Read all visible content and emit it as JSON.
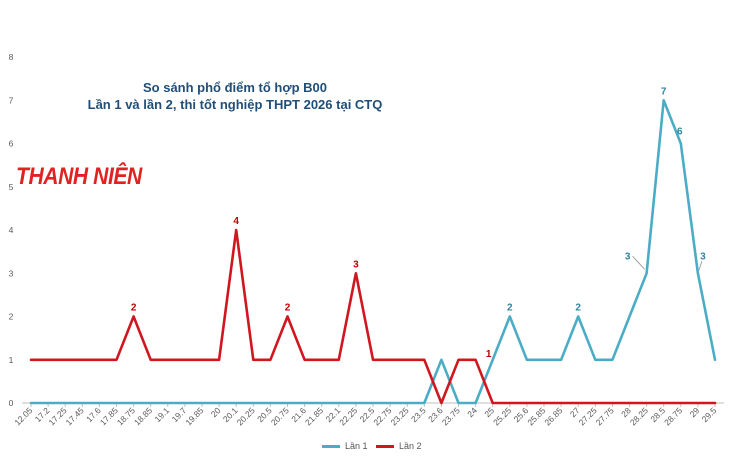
{
  "title_line1": "So sánh phổ điểm tổ hợp B00",
  "title_line2": "Lần 1 và lần 2, thi tốt nghiệp THPT 2026 tại CTQ",
  "watermark": "THANH NIÊN",
  "chart_data": {
    "type": "line",
    "categories": [
      "12.05",
      "17.2",
      "17.25",
      "17.45",
      "17.6",
      "17.85",
      "18.75",
      "18.85",
      "19.1",
      "19.7",
      "19.85",
      "20",
      "20.1",
      "20.25",
      "20.5",
      "20.75",
      "21.6",
      "21.85",
      "22.1",
      "22.25",
      "22.5",
      "22.75",
      "23.25",
      "23.5",
      "23.6",
      "23.75",
      "24",
      "25",
      "25.25",
      "25.6",
      "25.85",
      "26.85",
      "27",
      "27.25",
      "27.75",
      "28",
      "28.25",
      "28.5",
      "28.75",
      "29",
      "29.5"
    ],
    "series": [
      {
        "name": "Lần 1",
        "color": "#4bacc6",
        "values": [
          0,
          0,
          0,
          0,
          0,
          0,
          0,
          0,
          0,
          0,
          0,
          0,
          0,
          0,
          0,
          0,
          0,
          0,
          0,
          0,
          0,
          0,
          0,
          0,
          1,
          0,
          0,
          1,
          2,
          1,
          1,
          1,
          2,
          1,
          1,
          2,
          3,
          7,
          6,
          3,
          1
        ]
      },
      {
        "name": "Lần 2",
        "color": "#d0161f",
        "values": [
          1,
          1,
          1,
          1,
          1,
          1,
          2,
          1,
          1,
          1,
          1,
          1,
          4,
          1,
          1,
          2,
          1,
          1,
          1,
          3,
          1,
          1,
          1,
          1,
          0,
          1,
          1,
          0,
          0,
          0,
          0,
          0,
          0,
          0,
          0,
          0,
          0,
          0,
          0,
          0,
          0
        ]
      }
    ],
    "data_labels": [
      {
        "series": 1,
        "index": 6,
        "text": "2"
      },
      {
        "series": 1,
        "index": 12,
        "text": "4"
      },
      {
        "series": 1,
        "index": 15,
        "text": "2"
      },
      {
        "series": 1,
        "index": 19,
        "text": "3"
      },
      {
        "series": 1,
        "index": 26,
        "text": "1"
      },
      {
        "series": 0,
        "index": 28,
        "text": "2"
      },
      {
        "series": 0,
        "index": 32,
        "text": "2"
      },
      {
        "series": 0,
        "index": 36,
        "text": "3"
      },
      {
        "series": 0,
        "index": 37,
        "text": "7"
      },
      {
        "series": 0,
        "index": 38,
        "text": "6"
      },
      {
        "series": 0,
        "index": 39,
        "text": "3"
      }
    ],
    "ylim": [
      0,
      8
    ],
    "yticks": [
      "0",
      "1",
      "2",
      "3",
      "4",
      "5",
      "6",
      "7",
      "8"
    ],
    "grid": false,
    "legend_position": "bottom"
  }
}
